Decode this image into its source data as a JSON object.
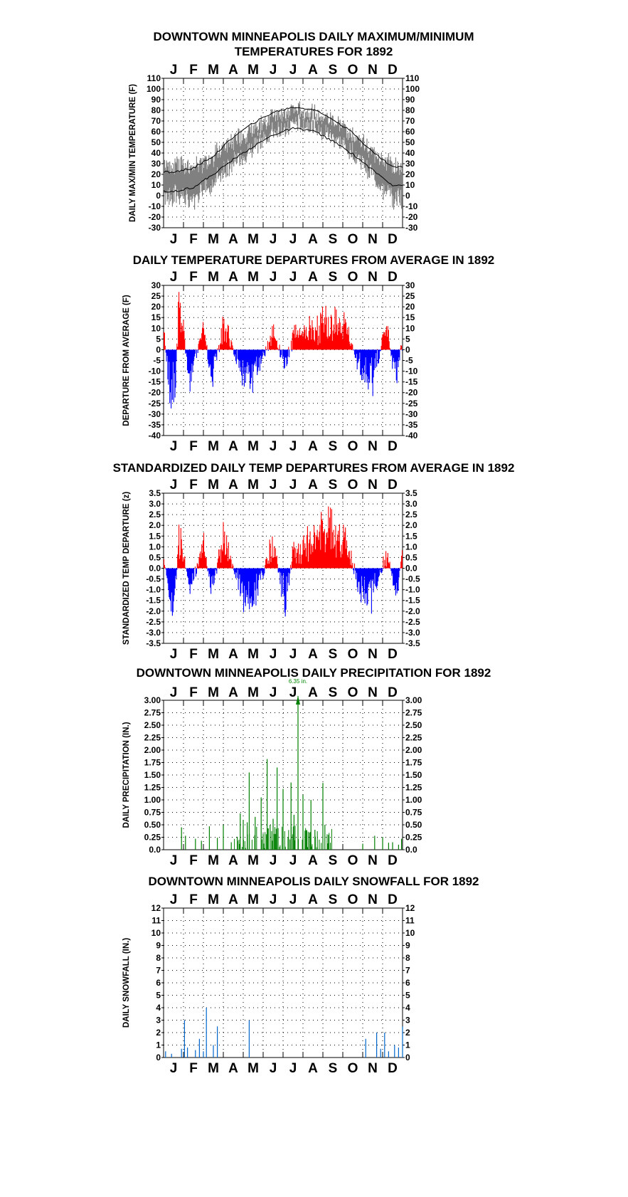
{
  "months": [
    "J",
    "F",
    "M",
    "A",
    "M",
    "J",
    "J",
    "A",
    "S",
    "O",
    "N",
    "D"
  ],
  "colors": {
    "axis": "#000000",
    "temp_line": "#808080",
    "normal_line": "#000000",
    "pos": "#ff0000",
    "neg": "#0000ff",
    "precip": "#008000",
    "snow": "#0066cc"
  },
  "chart_data": [
    {
      "type": "line",
      "title": [
        "DOWNTOWN MINNEAPOLIS DAILY MAXIMUM/MINIMUM",
        "TEMPERATURES FOR 1892"
      ],
      "ylabel": "DAILY MAX/MIN TEMPERATURE (F)",
      "ylim": [
        -30,
        110
      ],
      "yticks": [
        "110",
        "100",
        "90",
        "80",
        "70",
        "60",
        "50",
        "40",
        "30",
        "20",
        "10",
        "0",
        "-10",
        "-20",
        "-30"
      ],
      "grid": true,
      "series": [
        {
          "name": "",
          "kind": "observed max/min (gray band)",
          "monthly_mid": [
            15,
            12,
            25,
            42,
            52,
            68,
            74,
            72,
            62,
            50,
            30,
            12
          ],
          "monthly_range": [
            35,
            35,
            30,
            25,
            20,
            18,
            15,
            15,
            18,
            20,
            25,
            35
          ]
        },
        {
          "name": "",
          "kind": "normal high",
          "x_month": [
            0.5,
            1.5,
            2.5,
            3.5,
            4.5,
            5.5,
            6.5,
            7.5,
            8.5,
            9.5,
            10.5,
            11.5
          ],
          "values": [
            22,
            26,
            37,
            55,
            68,
            78,
            83,
            81,
            72,
            59,
            41,
            27
          ]
        },
        {
          "name": "",
          "kind": "normal low",
          "x_month": [
            0.5,
            1.5,
            2.5,
            3.5,
            4.5,
            5.5,
            6.5,
            7.5,
            8.5,
            9.5,
            10.5,
            11.5
          ],
          "values": [
            4,
            8,
            20,
            34,
            46,
            57,
            63,
            61,
            51,
            39,
            24,
            10
          ]
        }
      ]
    },
    {
      "type": "bar",
      "title": [
        "DAILY TEMPERATURE DEPARTURES FROM AVERAGE IN 1892"
      ],
      "ylabel": "DEPARTURE FROM AVERAGE (F)",
      "ylim": [
        -40,
        30
      ],
      "yticks": [
        "30",
        "25",
        "20",
        "15",
        "10",
        "5",
        "0",
        "-5",
        "-10",
        "-15",
        "-20",
        "-25",
        "-30",
        "-35",
        "-40"
      ],
      "grid": true,
      "key_points": [
        [
          0,
          12
        ],
        [
          0.3,
          -25
        ],
        [
          0.6,
          -25
        ],
        [
          0.75,
          27
        ],
        [
          0.9,
          25
        ],
        [
          1.3,
          -21
        ],
        [
          2.0,
          18
        ],
        [
          2.4,
          -20
        ],
        [
          3.0,
          18
        ],
        [
          4.0,
          -17
        ],
        [
          4.45,
          -20
        ],
        [
          5.5,
          11
        ],
        [
          6.1,
          -13
        ],
        [
          6.5,
          10
        ],
        [
          8.55,
          20
        ],
        [
          9.1,
          17
        ],
        [
          10.0,
          -18
        ],
        [
          10.5,
          -19
        ],
        [
          11.2,
          14
        ],
        [
          11.7,
          -20
        ],
        [
          12.0,
          8
        ]
      ]
    },
    {
      "type": "bar",
      "title": [
        "STANDARDIZED DAILY TEMP DEPARTURES FROM AVERAGE IN 1892"
      ],
      "ylabel": "STANDARDIZED TEMP DEPARTURE (z)",
      "ylim": [
        -3.5,
        3.5
      ],
      "yticks": [
        "3.5",
        "3.0",
        "2.5",
        "2.0",
        "1.5",
        "1.0",
        "0.5",
        "0.0",
        "-0.5",
        "-1.0",
        "-1.5",
        "-2.0",
        "-2.5",
        "-3.0",
        "-3.5"
      ],
      "grid": true,
      "key_points": [
        [
          0,
          0.9
        ],
        [
          0.3,
          -1.9
        ],
        [
          0.6,
          -1.9
        ],
        [
          0.75,
          2.1
        ],
        [
          0.9,
          1.9
        ],
        [
          1.3,
          -1.6
        ],
        [
          2.0,
          1.6
        ],
        [
          2.4,
          -1.7
        ],
        [
          3.0,
          2.0
        ],
        [
          4.0,
          -1.7
        ],
        [
          4.45,
          -2.3
        ],
        [
          5.5,
          1.7
        ],
        [
          6.1,
          -2.3
        ],
        [
          6.5,
          1.0
        ],
        [
          8.55,
          2.8
        ],
        [
          9.1,
          2.0
        ],
        [
          10.0,
          -1.9
        ],
        [
          10.5,
          -1.8
        ],
        [
          11.2,
          1.0
        ],
        [
          11.7,
          -1.5
        ],
        [
          12.0,
          0.8
        ]
      ]
    },
    {
      "type": "bar",
      "title": [
        "DOWNTOWN MINNEAPOLIS DAILY PRECIPITATION FOR 1892"
      ],
      "ylabel": "DAILY PRECIPITATION (IN.)",
      "ylim": [
        0,
        3
      ],
      "yticks": [
        "3.00",
        "2.75",
        "2.50",
        "2.25",
        "2.00",
        "1.75",
        "1.50",
        "1.25",
        "1.00",
        "0.75",
        "0.50",
        "0.25",
        "0.0"
      ],
      "grid": true,
      "annotation": "6.35 in.",
      "key_points": [
        [
          0.9,
          0.45
        ],
        [
          1.1,
          0.28
        ],
        [
          1.6,
          0.22
        ],
        [
          1.9,
          0.18
        ],
        [
          2.3,
          0.47
        ],
        [
          2.7,
          0.24
        ],
        [
          3.0,
          0.5
        ],
        [
          3.4,
          0.15
        ],
        [
          3.7,
          0.26
        ],
        [
          3.85,
          0.73
        ],
        [
          4.0,
          0.6
        ],
        [
          4.2,
          0.55
        ],
        [
          4.3,
          1.55
        ],
        [
          4.6,
          0.66
        ],
        [
          4.9,
          1.05
        ],
        [
          5.0,
          0.32
        ],
        [
          5.2,
          1.82
        ],
        [
          5.35,
          0.5
        ],
        [
          5.5,
          0.62
        ],
        [
          5.7,
          1.65
        ],
        [
          6.0,
          1.22
        ],
        [
          6.4,
          1.35
        ],
        [
          6.55,
          0.7
        ],
        [
          6.75,
          6.35
        ],
        [
          7.0,
          1.1
        ],
        [
          7.4,
          1.0
        ],
        [
          7.6,
          0.4
        ],
        [
          8.0,
          1.34
        ],
        [
          8.1,
          0.5
        ],
        [
          8.3,
          0.28
        ],
        [
          10.0,
          0.12
        ],
        [
          10.6,
          0.28
        ],
        [
          11.0,
          0.25
        ],
        [
          11.3,
          0.14
        ],
        [
          11.5,
          0.15
        ],
        [
          11.8,
          0.1
        ],
        [
          11.95,
          0.22
        ]
      ]
    },
    {
      "type": "bar",
      "title": [
        "DOWNTOWN MINNEAPOLIS DAILY SNOWFALL FOR 1892"
      ],
      "ylabel": "DAILY SNOWFALL (IN.)",
      "ylim": [
        0,
        12
      ],
      "yticks": [
        "12",
        "11",
        "10",
        "9",
        "8",
        "7",
        "6",
        "5",
        "4",
        "3",
        "2",
        "1",
        "0"
      ],
      "grid": true,
      "key_points": [
        [
          0.1,
          0.5
        ],
        [
          0.4,
          0.3
        ],
        [
          0.9,
          0.7
        ],
        [
          1.05,
          3.0
        ],
        [
          1.2,
          0.8
        ],
        [
          1.6,
          0.6
        ],
        [
          1.8,
          1.5
        ],
        [
          2.0,
          0.5
        ],
        [
          2.15,
          4.0
        ],
        [
          2.5,
          1.0
        ],
        [
          2.7,
          2.5
        ],
        [
          4.3,
          3.0
        ],
        [
          10.15,
          1.5
        ],
        [
          10.7,
          2.0
        ],
        [
          10.9,
          0.7
        ],
        [
          11.1,
          2.0
        ],
        [
          11.3,
          0.5
        ],
        [
          11.6,
          1.0
        ],
        [
          11.8,
          0.8
        ],
        [
          12.0,
          2.5
        ]
      ]
    }
  ]
}
